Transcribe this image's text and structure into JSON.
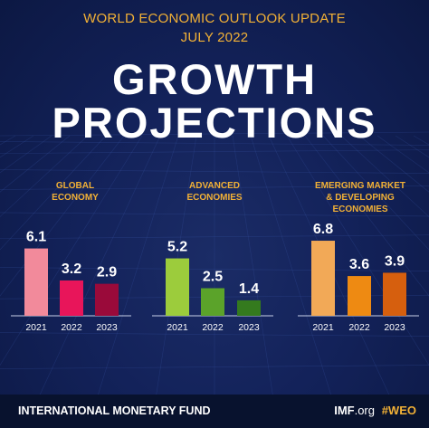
{
  "header": {
    "line1": "WORLD ECONOMIC OUTLOOK UPDATE",
    "line2": "JULY 2022",
    "title1": "GROWTH",
    "title2": "PROJECTIONS"
  },
  "footer": {
    "org": "INTERNATIONAL MONETARY FUND",
    "site_bold": "IMF",
    "site_rest": ".org",
    "hashtag": "#WEO"
  },
  "colors": {
    "background": "#13225a",
    "accent": "#f2b136"
  },
  "chart_data": [
    {
      "type": "bar",
      "title": [
        "GLOBAL",
        "ECONOMY"
      ],
      "categories": [
        "2021",
        "2022",
        "2023"
      ],
      "values": [
        6.1,
        3.2,
        2.9
      ],
      "labels": [
        "6.1",
        "3.2",
        "2.9"
      ],
      "colors": [
        "#f28a9b",
        "#e8155a",
        "#9a0a3a"
      ],
      "ylim": [
        0,
        7.5
      ]
    },
    {
      "type": "bar",
      "title": [
        "ADVANCED",
        "ECONOMIES"
      ],
      "categories": [
        "2021",
        "2022",
        "2023"
      ],
      "values": [
        5.2,
        2.5,
        1.4
      ],
      "labels": [
        "5.2",
        "2.5",
        "1.4"
      ],
      "colors": [
        "#9ccc3c",
        "#5ba32a",
        "#347a1e"
      ],
      "ylim": [
        0,
        7.5
      ]
    },
    {
      "type": "bar",
      "title": [
        "EMERGING MARKET",
        "& DEVELOPING",
        "ECONOMIES"
      ],
      "categories": [
        "2021",
        "2022",
        "2023"
      ],
      "values": [
        6.8,
        3.6,
        3.9
      ],
      "labels": [
        "6.8",
        "3.6",
        "3.9"
      ],
      "colors": [
        "#f2a957",
        "#ee8a12",
        "#d65f0e"
      ],
      "ylim": [
        0,
        7.5
      ]
    }
  ]
}
